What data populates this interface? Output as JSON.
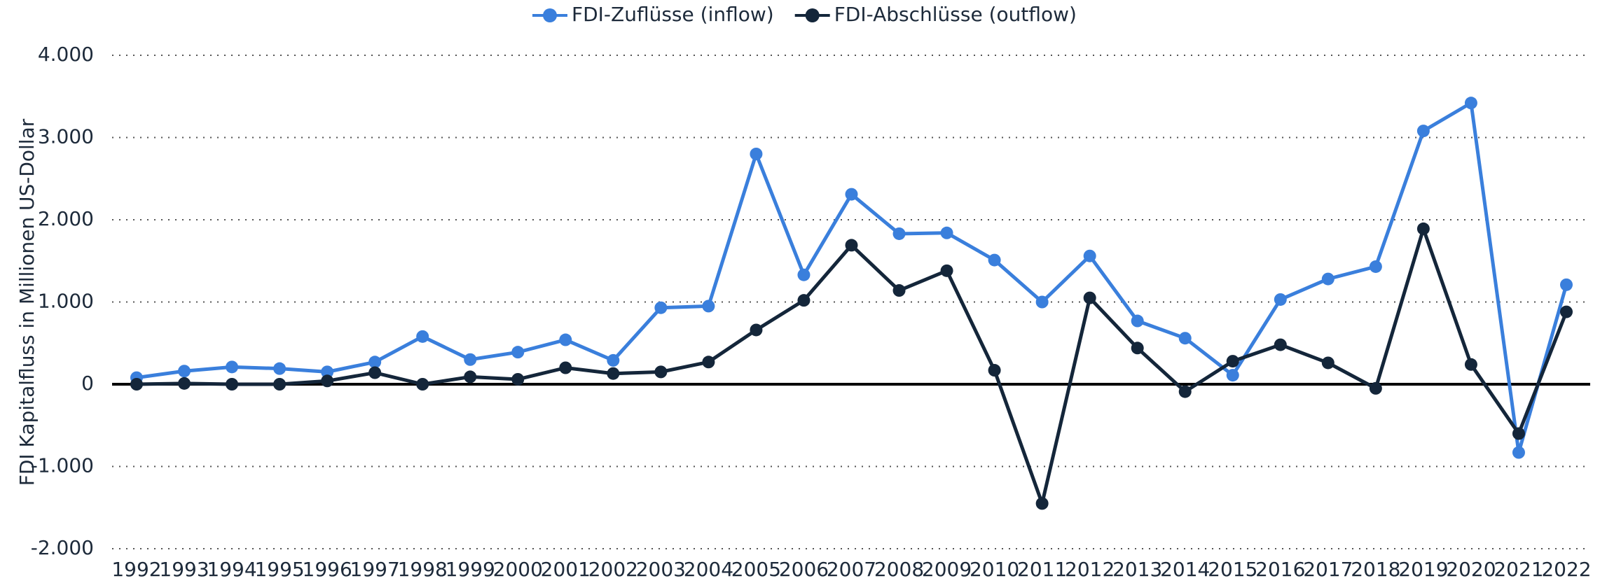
{
  "chart_data": {
    "type": "line",
    "y_label": "FDI Kapitalfluss in Millionen US-Dollar",
    "categories": [
      "1992",
      "1993",
      "1994",
      "1995",
      "1996",
      "1997",
      "1998",
      "1999",
      "2000",
      "2001",
      "2002",
      "2003",
      "2004",
      "2005",
      "2006",
      "2007",
      "2008",
      "2009",
      "2010",
      "2011",
      "2012",
      "2013",
      "2014",
      "2015",
      "2016",
      "2017",
      "2018",
      "2019",
      "2020",
      "2021",
      "2022"
    ],
    "series": [
      {
        "name": "FDI-Zuflüsse (inflow)",
        "color": "#3a7fdc",
        "values": [
          80,
          160,
          210,
          190,
          150,
          270,
          580,
          300,
          390,
          540,
          290,
          930,
          950,
          2800,
          1330,
          2310,
          1830,
          1840,
          1510,
          1000,
          1560,
          770,
          560,
          110,
          1030,
          1280,
          1430,
          3080,
          3420,
          -830,
          1210
        ]
      },
      {
        "name": "FDI-Abschlüsse (outflow)",
        "color": "#14263a",
        "values": [
          0,
          10,
          0,
          0,
          40,
          140,
          0,
          90,
          60,
          200,
          130,
          150,
          270,
          660,
          1020,
          1690,
          1140,
          1380,
          170,
          -1450,
          1050,
          440,
          -90,
          280,
          480,
          260,
          -50,
          1890,
          240,
          -600,
          880
        ]
      }
    ],
    "ylim": [
      -2000,
      4000
    ],
    "yticks": [
      {
        "value": -2000,
        "label": "-2.000"
      },
      {
        "value": -1000,
        "label": "-1.000"
      },
      0,
      {
        "value": 1000,
        "label": "1.000"
      },
      {
        "value": 2000,
        "label": "2.000"
      },
      {
        "value": 3000,
        "label": "3.000"
      },
      {
        "value": 4000,
        "label": "4.000"
      }
    ],
    "grid": true,
    "legend": "top"
  }
}
